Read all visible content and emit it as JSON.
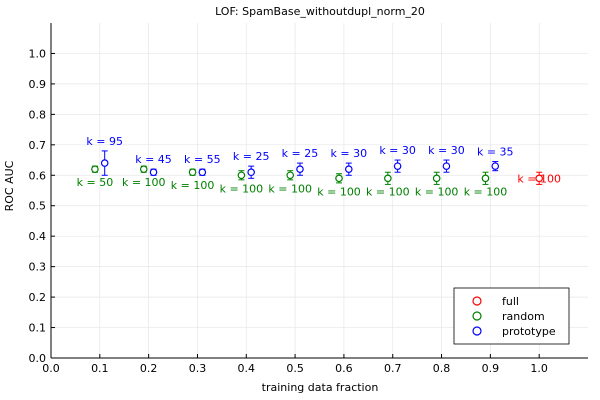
{
  "chart_data": {
    "type": "scatter",
    "title": "LOF: SpamBase_withoutdupl_norm_20",
    "xlabel": "training data fraction",
    "ylabel": "ROC AUC",
    "xlim": [
      0.0,
      1.1
    ],
    "ylim": [
      0.0,
      1.1
    ],
    "xticks": [
      0.0,
      0.1,
      0.2,
      0.3,
      0.4,
      0.5,
      0.6,
      0.7,
      0.8,
      0.9,
      1.0
    ],
    "xtick_labels": [
      "0.0",
      "0.1",
      "0.2",
      "0.3",
      "0.4",
      "0.5",
      "0.6",
      "0.7",
      "0.8",
      "0.9",
      "1.0"
    ],
    "yticks": [
      0.0,
      0.1,
      0.2,
      0.3,
      0.4,
      0.5,
      0.6,
      0.7,
      0.8,
      0.9,
      1.0
    ],
    "ytick_labels": [
      "0.0",
      "0.1",
      "0.2",
      "0.3",
      "0.4",
      "0.5",
      "0.6",
      "0.7",
      "0.8",
      "0.9",
      "1.0"
    ],
    "grid": true,
    "legend_position": "bottom-right",
    "marker": "open-circle",
    "series": [
      {
        "name": "full",
        "color": "#ff0000",
        "points": [
          {
            "x": 1.0,
            "y": 0.59,
            "err": 0.02,
            "label": "k = 100"
          }
        ]
      },
      {
        "name": "random",
        "color": "#008000",
        "points": [
          {
            "x": 0.09,
            "y": 0.62,
            "err": 0.01,
            "label": "k = 50"
          },
          {
            "x": 0.19,
            "y": 0.62,
            "err": 0.01,
            "label": "k = 100"
          },
          {
            "x": 0.29,
            "y": 0.61,
            "err": 0.01,
            "label": "k = 100"
          },
          {
            "x": 0.39,
            "y": 0.6,
            "err": 0.015,
            "label": "k = 100"
          },
          {
            "x": 0.49,
            "y": 0.6,
            "err": 0.015,
            "label": "k = 100"
          },
          {
            "x": 0.59,
            "y": 0.59,
            "err": 0.015,
            "label": "k = 100"
          },
          {
            "x": 0.69,
            "y": 0.59,
            "err": 0.02,
            "label": "k = 100"
          },
          {
            "x": 0.79,
            "y": 0.59,
            "err": 0.02,
            "label": "k = 100"
          },
          {
            "x": 0.89,
            "y": 0.59,
            "err": 0.02,
            "label": "k = 100"
          }
        ]
      },
      {
        "name": "prototype",
        "color": "#0000ff",
        "points": [
          {
            "x": 0.11,
            "y": 0.64,
            "err": 0.04,
            "label": "k = 95"
          },
          {
            "x": 0.21,
            "y": 0.61,
            "err": 0.01,
            "label": "k = 45"
          },
          {
            "x": 0.31,
            "y": 0.61,
            "err": 0.01,
            "label": "k = 55"
          },
          {
            "x": 0.41,
            "y": 0.61,
            "err": 0.02,
            "label": "k = 25"
          },
          {
            "x": 0.51,
            "y": 0.62,
            "err": 0.02,
            "label": "k = 25"
          },
          {
            "x": 0.61,
            "y": 0.62,
            "err": 0.02,
            "label": "k = 30"
          },
          {
            "x": 0.71,
            "y": 0.63,
            "err": 0.02,
            "label": "k = 30"
          },
          {
            "x": 0.81,
            "y": 0.63,
            "err": 0.02,
            "label": "k = 30"
          },
          {
            "x": 0.91,
            "y": 0.63,
            "err": 0.015,
            "label": "k = 35"
          }
        ]
      }
    ]
  }
}
